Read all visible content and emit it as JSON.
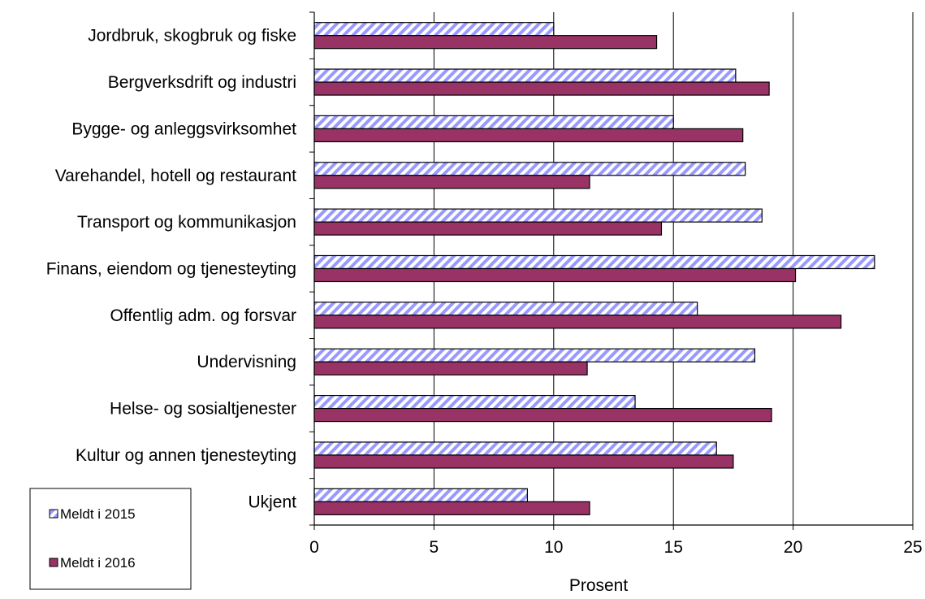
{
  "chart_data": {
    "type": "bar",
    "orientation": "horizontal",
    "categories": [
      "Jordbruk, skogbruk og fiske",
      "Bergverksdrift og industri",
      "Bygge- og anleggsvirksomhet",
      "Varehandel, hotell og restaurant",
      "Transport og kommunikasjon",
      "Finans, eiendom og tjenesteyting",
      "Offentlig adm. og forsvar",
      "Undervisning",
      "Helse- og sosialtjenester",
      "Kultur og annen tjenesteyting",
      "Ukjent"
    ],
    "series": [
      {
        "name": "Meldt i 2015",
        "values": [
          10.0,
          17.6,
          15.0,
          18.0,
          18.7,
          23.4,
          16.0,
          18.4,
          13.4,
          16.8,
          8.9
        ],
        "color": "#9999ff",
        "pattern": "diagonal-hatch"
      },
      {
        "name": "Meldt i 2016",
        "values": [
          14.3,
          19.0,
          17.9,
          11.5,
          14.5,
          20.1,
          22.0,
          11.4,
          19.1,
          17.5,
          11.5
        ],
        "color": "#993366",
        "pattern": "solid"
      }
    ],
    "xlabel": "Prosent",
    "ylabel": "",
    "xlim": [
      0,
      25
    ],
    "xticks": [
      0,
      5,
      10,
      15,
      20,
      25
    ],
    "grid": "vertical",
    "legend": "bottom-left"
  }
}
